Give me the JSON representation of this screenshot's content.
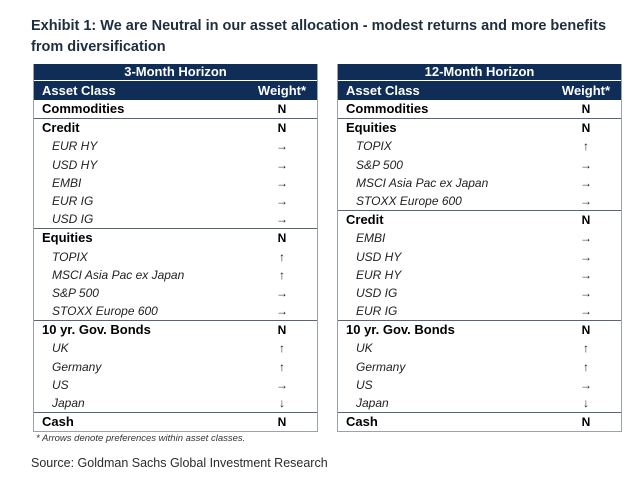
{
  "title": "Exhibit 1: We are Neutral in our asset allocation - modest returns and more benefits from diversification",
  "tables": [
    {
      "horizon": "3-Month Horizon",
      "col_asset": "Asset Class",
      "col_weight": "Weight*",
      "groups": [
        {
          "name": "Commodities",
          "weight": "N",
          "items": []
        },
        {
          "name": "Credit",
          "weight": "N",
          "items": [
            {
              "name": "EUR HY",
              "arrow": "→"
            },
            {
              "name": "USD HY",
              "arrow": "→"
            },
            {
              "name": "EMBI",
              "arrow": "→"
            },
            {
              "name": "EUR IG",
              "arrow": "→"
            },
            {
              "name": "USD IG",
              "arrow": "→"
            }
          ]
        },
        {
          "name": "Equities",
          "weight": "N",
          "items": [
            {
              "name": "TOPIX",
              "arrow": "↑"
            },
            {
              "name": "MSCI Asia Pac ex Japan",
              "arrow": "↑"
            },
            {
              "name": "S&P 500",
              "arrow": "→"
            },
            {
              "name": "STOXX Europe 600",
              "arrow": "→"
            }
          ]
        },
        {
          "name": "10 yr. Gov. Bonds",
          "weight": "N",
          "items": [
            {
              "name": "UK",
              "arrow": "↑"
            },
            {
              "name": "Germany",
              "arrow": "↑"
            },
            {
              "name": "US",
              "arrow": "→"
            },
            {
              "name": "Japan",
              "arrow": "↓"
            }
          ]
        },
        {
          "name": "Cash",
          "weight": "N",
          "items": []
        }
      ]
    },
    {
      "horizon": "12-Month Horizon",
      "col_asset": "Asset Class",
      "col_weight": "Weight*",
      "groups": [
        {
          "name": "Commodities",
          "weight": "N",
          "items": []
        },
        {
          "name": "Equities",
          "weight": "N",
          "items": [
            {
              "name": "TOPIX",
              "arrow": "↑"
            },
            {
              "name": "S&P 500",
              "arrow": "→"
            },
            {
              "name": "MSCI Asia Pac ex Japan",
              "arrow": "→"
            },
            {
              "name": "STOXX Europe 600",
              "arrow": "→"
            }
          ]
        },
        {
          "name": "Credit",
          "weight": "N",
          "items": [
            {
              "name": "EMBI",
              "arrow": "→"
            },
            {
              "name": "USD HY",
              "arrow": "→"
            },
            {
              "name": "EUR HY",
              "arrow": "→"
            },
            {
              "name": "USD IG",
              "arrow": "→"
            },
            {
              "name": "EUR IG",
              "arrow": "→"
            }
          ]
        },
        {
          "name": "10 yr. Gov. Bonds",
          "weight": "N",
          "items": [
            {
              "name": "UK",
              "arrow": "↑"
            },
            {
              "name": "Germany",
              "arrow": "↑"
            },
            {
              "name": "US",
              "arrow": "→"
            },
            {
              "name": "Japan",
              "arrow": "↓"
            }
          ]
        },
        {
          "name": "Cash",
          "weight": "N",
          "items": []
        }
      ]
    }
  ],
  "footnote": "* Arrows denote preferences within asset classes.",
  "source": "Source: Goldman Sachs Global Investment Research"
}
